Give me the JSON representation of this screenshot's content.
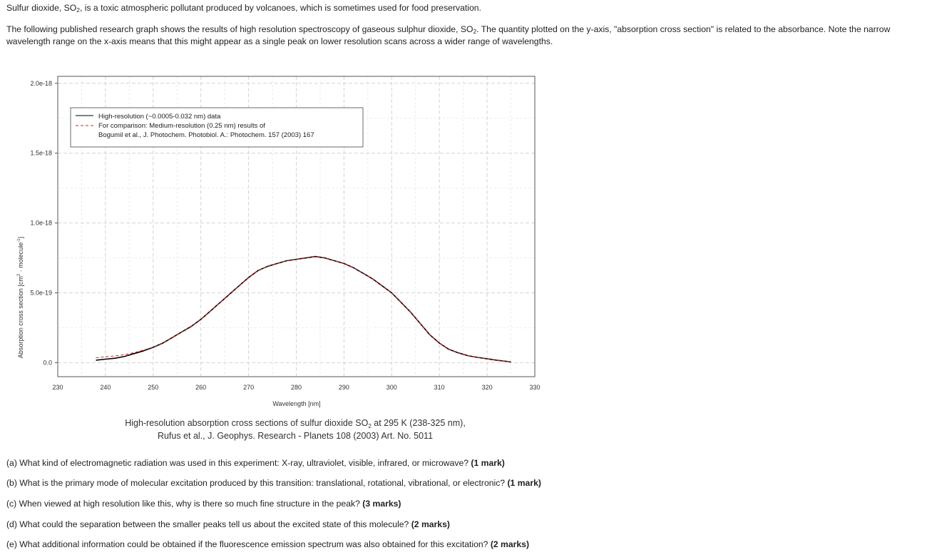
{
  "intro": {
    "p1_pre": "Sulfur dioxide, SO",
    "p1_post": ", is a toxic atmospheric pollutant produced by volcanoes, which is sometimes used for food preservation.",
    "sub2": "2",
    "p2_pre": "The following published research graph shows the results of high resolution spectroscopy of gaseous sulphur dioxide, SO",
    "p2_post": ". The quantity plotted on the y-axis, \"absorption cross section\" is related to the absorbance. Note the narrow wavelength range on the x-axis means that this might appear as a single peak on lower resolution scans across a wider range of wavelengths."
  },
  "questions": [
    {
      "text": "(a) What kind of electromagnetic radiation was used in this experiment: X-ray, ultraviolet, visible, infrared, or microwave?",
      "marks": "(1 mark)"
    },
    {
      "text": "(b) What is the primary mode of molecular excitation produced by this transition: translational, rotational, vibrational, or electronic?",
      "marks": "(1 mark)"
    },
    {
      "text": "(c) When viewed at high resolution like this, why is there so much fine structure in the peak?",
      "marks": "(3 marks)"
    },
    {
      "text": "(d) What could the separation between the smaller peaks tell us about the excited state of this molecule?",
      "marks": "(2 marks)"
    },
    {
      "text": "(e) What additional information could be obtained if the fluorescence emission spectrum was also obtained for this excitation?",
      "marks": "(2 marks)"
    }
  ],
  "chart_data": {
    "type": "line",
    "xlabel": "Wavelength [nm]",
    "ylabel": "Absorption cross section [cm",
    "ylabel_sup": "2",
    "ylabel_mid": " · molecule",
    "ylabel_sup2": "-1",
    "ylabel_end": "]",
    "xlim": [
      230,
      330
    ],
    "ylim": [
      -1e-19,
      2.05e-18
    ],
    "x_ticks": [
      230,
      240,
      250,
      260,
      270,
      280,
      290,
      300,
      310,
      320,
      330
    ],
    "x_tick_labels": [
      "230",
      "240",
      "250",
      "260",
      "270",
      "280",
      "290",
      "300",
      "310",
      "320",
      "330"
    ],
    "y_ticks": [
      0,
      5e-19,
      1e-18,
      1.5e-18,
      2e-18
    ],
    "y_tick_labels": [
      "0.0",
      "5.0e-19",
      "1.0e-18",
      "1.5e-18",
      "2.0e-18"
    ],
    "grid": true,
    "legend_position": "top-left",
    "series": [
      {
        "name": "High-resolution (~0.0005-0.032 nm) data",
        "color": "#000000",
        "style": "solid",
        "x": [
          238,
          240,
          242,
          244,
          246,
          248,
          250,
          252,
          254,
          256,
          258,
          260,
          262,
          264,
          266,
          268,
          270,
          272,
          274,
          276,
          278,
          280,
          282,
          284,
          286,
          288,
          290,
          292,
          294,
          296,
          298,
          300,
          302,
          304,
          306,
          308,
          310,
          312,
          314,
          316,
          318,
          320,
          322,
          324,
          325
        ],
        "y": [
          1.8e-20,
          2.5e-20,
          3.2e-20,
          4.5e-20,
          6.5e-20,
          8.5e-20,
          1.1e-19,
          1.4e-19,
          1.8e-19,
          2.2e-19,
          2.6e-19,
          3.1e-19,
          3.7e-19,
          4.3e-19,
          4.9e-19,
          5.5e-19,
          6.1e-19,
          6.6e-19,
          6.9e-19,
          7.1e-19,
          7.3e-19,
          7.4e-19,
          7.5e-19,
          7.6e-19,
          7.5e-19,
          7.3e-19,
          7.1e-19,
          6.8e-19,
          6.4e-19,
          6e-19,
          5.5e-19,
          5e-19,
          4.3e-19,
          3.6e-19,
          2.8e-19,
          2e-19,
          1.4e-19,
          9.5e-20,
          7e-20,
          5e-20,
          3.8e-20,
          2.8e-20,
          1.8e-20,
          1e-20,
          5e-21
        ]
      },
      {
        "name": "For comparison: Medium-resolution (0.25 nm) results of",
        "name_line2": "Bogumil et al., J. Photochem. Photobiol. A.: Photochem. 157 (2003) 167",
        "color": "#dd2222",
        "style": "dashed",
        "x": [
          238,
          240,
          242,
          244,
          246,
          248,
          250,
          252,
          254,
          256,
          258,
          260,
          262,
          264,
          266,
          268,
          270,
          272,
          274,
          276,
          278,
          280,
          282,
          284,
          286,
          288,
          290,
          292,
          294,
          296,
          298,
          300,
          302,
          304,
          306,
          308,
          310,
          312,
          314,
          316,
          318,
          320,
          322,
          324,
          325
        ],
        "y": [
          3.5e-20,
          4.2e-20,
          4.8e-20,
          5.8e-20,
          7.2e-20,
          9e-20,
          1.12e-19,
          1.4e-19,
          1.8e-19,
          2.2e-19,
          2.6e-19,
          3.1e-19,
          3.7e-19,
          4.3e-19,
          4.9e-19,
          5.5e-19,
          6.1e-19,
          6.6e-19,
          6.9e-19,
          7.1e-19,
          7.3e-19,
          7.4e-19,
          7.5e-19,
          7.6e-19,
          7.5e-19,
          7.3e-19,
          7.1e-19,
          6.8e-19,
          6.4e-19,
          6e-19,
          5.5e-19,
          5e-19,
          4.3e-19,
          3.6e-19,
          2.8e-19,
          2e-19,
          1.4e-19,
          9.5e-20,
          7e-20,
          5e-20,
          3.8e-20,
          2.8e-20,
          1.8e-20,
          1e-20,
          5e-21
        ]
      }
    ],
    "caption_pre": "High-resolution absorption cross sections of sulfur dioxide SO",
    "caption_sub": "2",
    "caption_post": " at 295 K (238-325 nm),",
    "caption_line2": "Rufus et al., J. Geophys. Research - Planets 108 (2003) Art. No. 5011"
  }
}
